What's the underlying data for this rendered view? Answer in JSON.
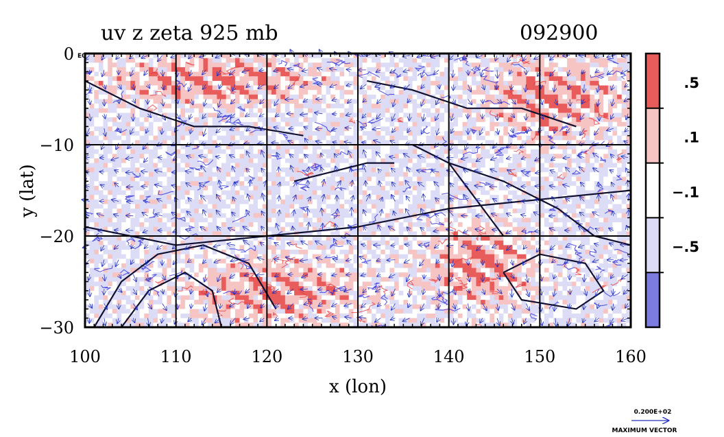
{
  "chart_data": {
    "type": "heatmap",
    "title": "uv z zeta 925 mb",
    "date_label": "092900",
    "xlabel": "x (lon)",
    "ylabel": "y (lat)",
    "xlim": [
      100,
      160
    ],
    "ylim": [
      -30,
      0
    ],
    "x_ticks": [
      100,
      110,
      120,
      130,
      140,
      150,
      160
    ],
    "x_tick_labels": [
      "100",
      "110",
      "120",
      "130",
      "140",
      "150",
      "160"
    ],
    "y_ticks": [
      0,
      -10,
      -20,
      -30
    ],
    "y_tick_labels": [
      "0",
      "−10",
      "−20",
      "−30"
    ],
    "y_top_suffix": "E0",
    "grid": true,
    "colorbar": {
      "levels": [
        -1,
        -0.5,
        -0.1,
        0.1,
        0.5,
        1
      ],
      "level_labels": [
        ".5",
        ".1",
        "−.1",
        "−.5"
      ],
      "colors": [
        "#7b7be0",
        "#dcdcf6",
        "#ffffff",
        "#f7c4c4",
        "#e85c5c"
      ]
    },
    "vector_reference": {
      "value_label": "0.200E+02",
      "caption": "MAXIMUM VECTOR"
    },
    "positive_zeta_bands": [
      {
        "lon": [
          100,
          128
        ],
        "lat": [
          -6,
          0
        ]
      },
      {
        "lon": [
          143,
          160
        ],
        "lat": [
          -10,
          0
        ]
      },
      {
        "lon": [
          110,
          132
        ],
        "lat": [
          -30,
          -22
        ]
      },
      {
        "lon": [
          137,
          150
        ],
        "lat": [
          -28,
          -18
        ]
      }
    ],
    "colors": {
      "positive": "#e8393c",
      "negative": "#2b2bd9",
      "contour": "#101030"
    }
  }
}
